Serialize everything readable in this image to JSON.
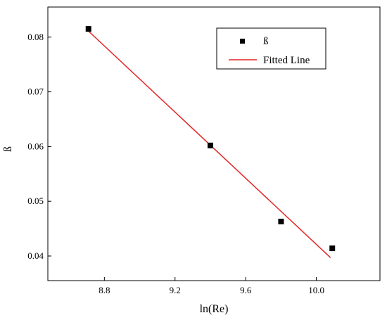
{
  "chart_data": {
    "type": "scatter",
    "title": "",
    "xlabel": "ln(Re)",
    "ylabel": "ß",
    "xlim": [
      8.48,
      10.36
    ],
    "ylim": [
      0.0355,
      0.0855
    ],
    "x_ticks": [
      8.8,
      9.2,
      9.6,
      10.0
    ],
    "x_tick_labels": [
      "8.8",
      "9.2",
      "9.6",
      "10.0"
    ],
    "y_ticks": [
      0.04,
      0.05,
      0.06,
      0.07,
      0.08
    ],
    "y_tick_labels": [
      "0.04",
      "0.05",
      "0.06",
      "0.07",
      "0.08"
    ],
    "grid": false,
    "legend_position": "top-right",
    "series": [
      {
        "name": "ß",
        "kind": "scatter",
        "marker": "square",
        "color": "#000000",
        "x": [
          8.71,
          9.4,
          9.8,
          10.09
        ],
        "y": [
          0.0815,
          0.0602,
          0.0463,
          0.0414
        ]
      },
      {
        "name": "Fitted Line",
        "kind": "line",
        "color": "#e32626",
        "x": [
          8.71,
          10.08
        ],
        "y": [
          0.0811,
          0.0397
        ]
      }
    ]
  }
}
